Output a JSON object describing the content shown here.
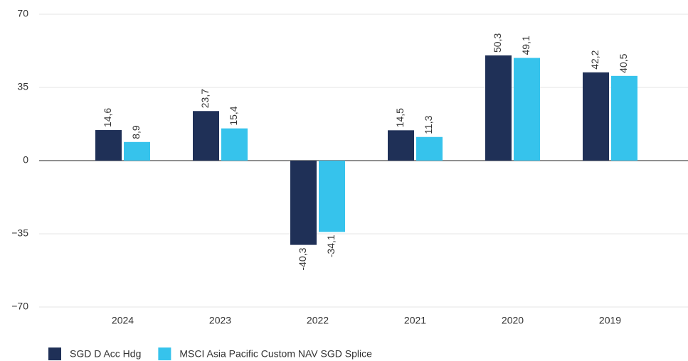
{
  "chart_data": {
    "type": "bar",
    "categories": [
      "2024",
      "2023",
      "2022",
      "2021",
      "2020",
      "2019"
    ],
    "series": [
      {
        "name": "SGD D Acc Hdg",
        "color": "#1f3057",
        "values": [
          14.6,
          23.7,
          -40.3,
          14.5,
          50.3,
          42.2
        ],
        "value_labels": [
          "14,6",
          "23,7",
          "-40,3",
          "14,5",
          "50,3",
          "42,2"
        ]
      },
      {
        "name": "MSCI Asia Pacific Custom NAV SGD Splice",
        "color": "#36c3ec",
        "values": [
          8.9,
          15.4,
          -34.1,
          11.3,
          49.1,
          40.5
        ],
        "value_labels": [
          "8,9",
          "15,4",
          "-34,1",
          "11,3",
          "49,1",
          "40,5"
        ]
      }
    ],
    "ylim": [
      -70,
      70
    ],
    "yticks": [
      {
        "value": -70,
        "label": "−70"
      },
      {
        "value": -35,
        "label": "−35"
      },
      0,
      35,
      70
    ],
    "grid": true,
    "legend": "bottom-left"
  }
}
